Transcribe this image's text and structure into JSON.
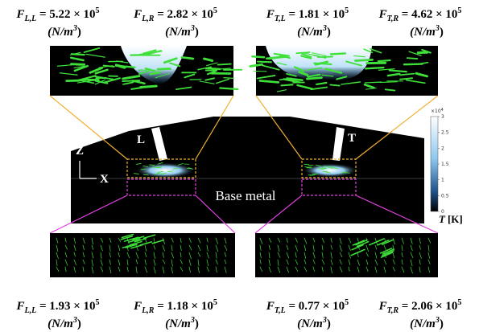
{
  "forces_top": [
    {
      "symbol": "F",
      "sub": "L,L",
      "value": " = 5.22 × 10",
      "exp": "5",
      "unit": "(N/m",
      "unit_exp": "3",
      "unit_end": ")"
    },
    {
      "symbol": "F",
      "sub": "L,R",
      "value": " = 2.82 × 10",
      "exp": "5",
      "unit": "(N/m",
      "unit_exp": "3",
      "unit_end": ")"
    },
    {
      "symbol": "F",
      "sub": "T,L",
      "value": " = 1.81 × 10",
      "exp": "5",
      "unit": "(N/m",
      "unit_exp": "3",
      "unit_end": ")"
    },
    {
      "symbol": "F",
      "sub": "T,R",
      "value": " = 4.62 × 10",
      "exp": "5",
      "unit": "(N/m",
      "unit_exp": "3",
      "unit_end": ")"
    }
  ],
  "forces_bottom": [
    {
      "symbol": "F",
      "sub": "L,L",
      "value": " = 1.93 × 10",
      "exp": "5",
      "unit": "(N/m",
      "unit_exp": "3",
      "unit_end": ")"
    },
    {
      "symbol": "F",
      "sub": "L,R",
      "value": " = 1.18 × 10",
      "exp": "5",
      "unit": "(N/m",
      "unit_exp": "3",
      "unit_end": ")"
    },
    {
      "symbol": "F",
      "sub": "T,L",
      "value": " = 0.77 × 10",
      "exp": "5",
      "unit": "(N/m",
      "unit_exp": "3",
      "unit_end": ")"
    },
    {
      "symbol": "F",
      "sub": "T,R",
      "value": " = 2.06 × 10",
      "exp": "5",
      "unit": "(N/m",
      "unit_exp": "3",
      "unit_end": ")"
    }
  ],
  "panel": {
    "torch_left": "L",
    "torch_right": "T",
    "axis_z": "Z",
    "axis_x": "X",
    "region": "Base metal"
  },
  "colorbar": {
    "multiplier": "×10",
    "multiplier_exp": "4",
    "ticks": [
      "3",
      "2.5",
      "2",
      "1.5",
      "1",
      "0.5",
      "0"
    ],
    "label": "T",
    "label_unit": "[K]"
  }
}
